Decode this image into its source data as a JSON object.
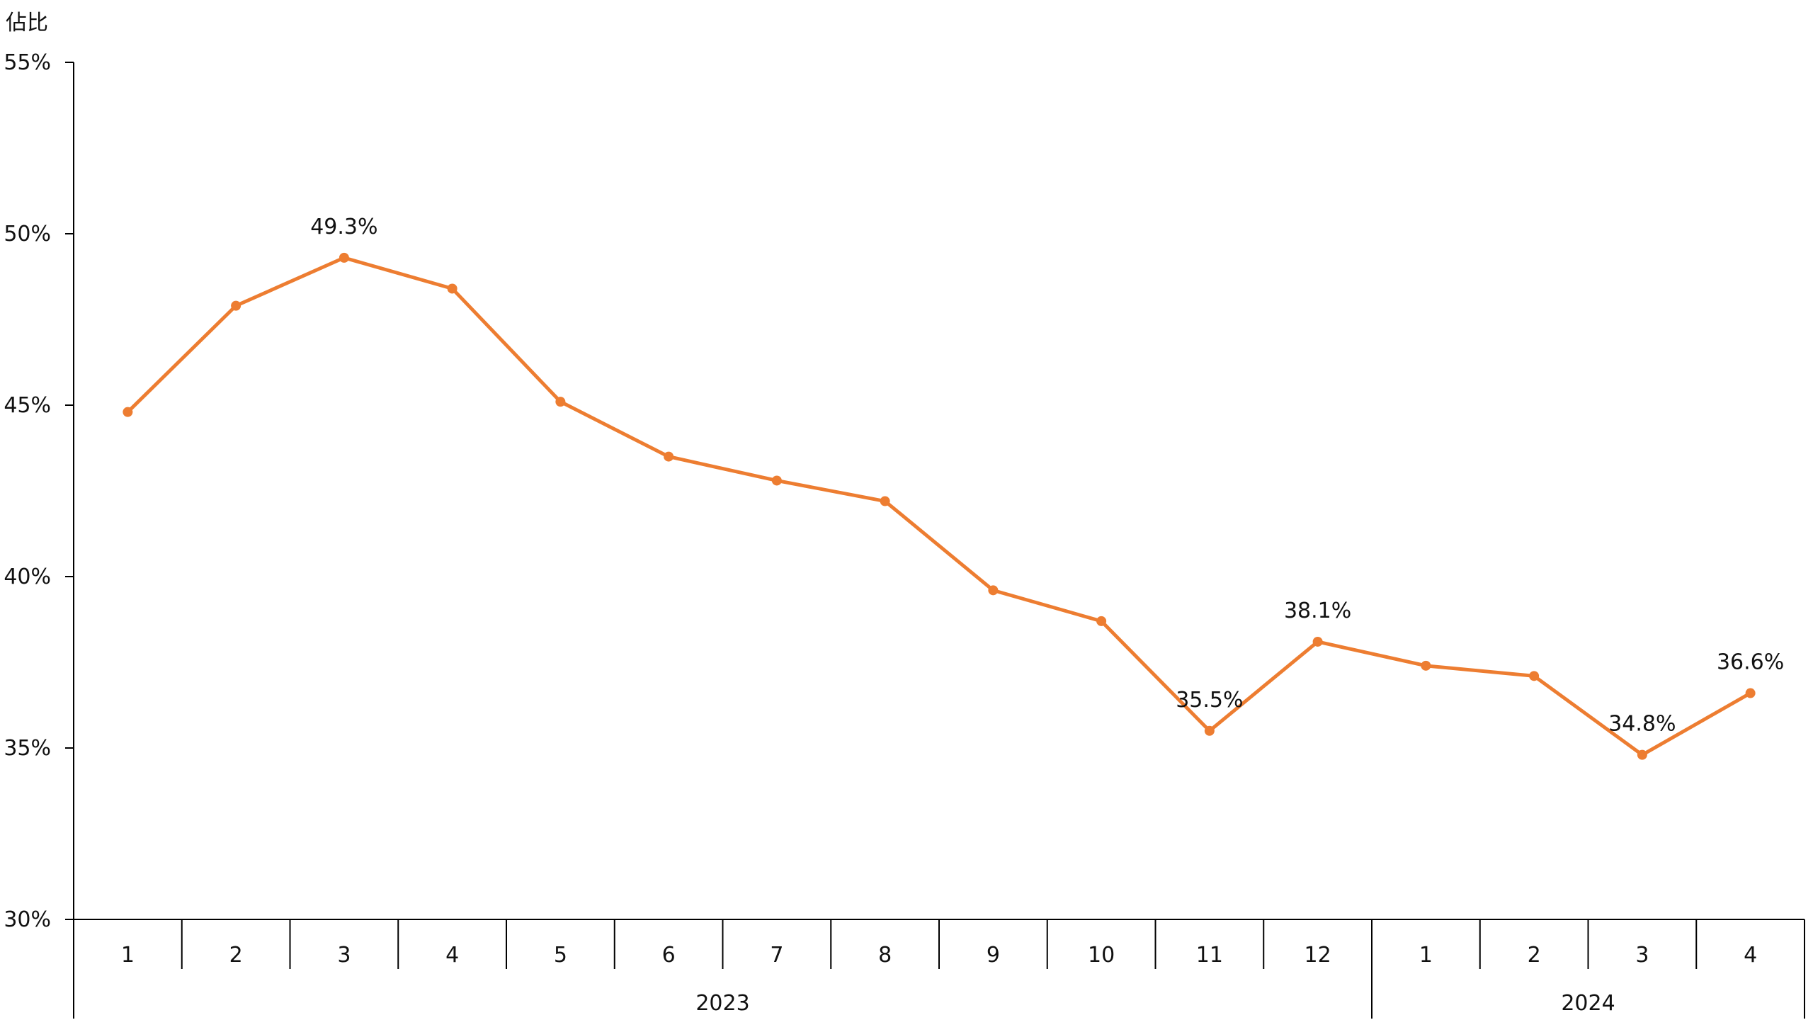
{
  "chart_data": {
    "type": "line",
    "title": "",
    "ylabel": "佔比",
    "ylim": [
      30,
      55
    ],
    "yticks": [
      30,
      35,
      40,
      45,
      50,
      55
    ],
    "ytick_labels": [
      "30%",
      "35%",
      "40%",
      "45%",
      "50%",
      "55%"
    ],
    "categories": [
      "1",
      "2",
      "3",
      "4",
      "5",
      "6",
      "7",
      "8",
      "9",
      "10",
      "11",
      "12",
      "1",
      "2",
      "3",
      "4"
    ],
    "groups": [
      {
        "label": "2023",
        "start": 0,
        "count": 12
      },
      {
        "label": "2024",
        "start": 12,
        "count": 4
      }
    ],
    "series": [
      {
        "values": [
          44.8,
          47.9,
          49.3,
          48.4,
          45.1,
          43.5,
          42.8,
          42.2,
          39.6,
          38.7,
          35.5,
          38.1,
          37.4,
          37.1,
          34.8,
          36.6
        ],
        "color": "#ED7D31"
      }
    ],
    "data_labels": [
      {
        "index": 2,
        "text": "49.3%"
      },
      {
        "index": 10,
        "text": "35.5%"
      },
      {
        "index": 11,
        "text": "38.1%"
      },
      {
        "index": 14,
        "text": "34.8%"
      },
      {
        "index": 15,
        "text": "36.6%"
      }
    ],
    "grid": false,
    "legend": "none"
  }
}
